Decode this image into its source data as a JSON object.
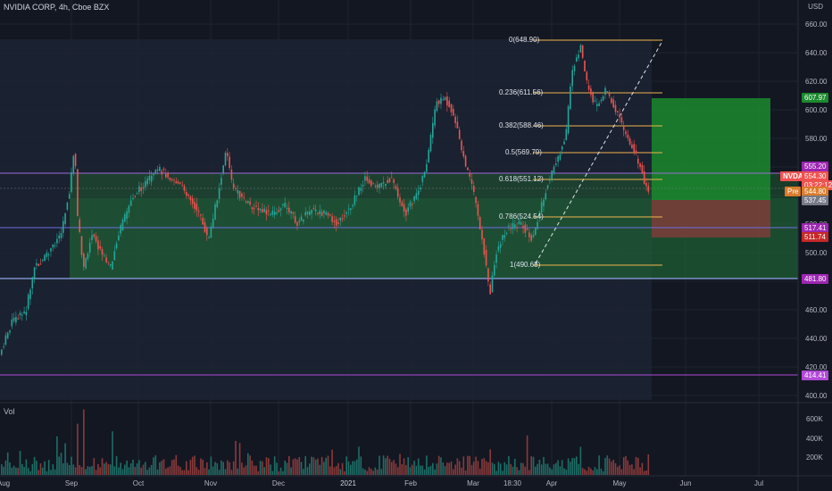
{
  "header": {
    "title": "NVIDIA CORP, 4h, Cboe BZX",
    "currency": "USD",
    "volume_label": "Vol"
  },
  "price_axis": [
    "660.00",
    "640.00",
    "620.00",
    "600.00",
    "580.00",
    "520.00",
    "500.00",
    "460.00",
    "440.00",
    "420.00",
    "400.00"
  ],
  "volume_axis": [
    "600K",
    "400K",
    "200K"
  ],
  "time_axis": [
    "Aug",
    "Sep",
    "Oct",
    "Nov",
    "Dec",
    "2021",
    "Feb",
    "Mar",
    "18:30",
    "Apr",
    "May",
    "Jun",
    "Jul"
  ],
  "fib_levels": [
    {
      "label": "0(648.90)"
    },
    {
      "label": "0.236(611.56)"
    },
    {
      "label": "0.382(588.46)"
    },
    {
      "label": "0.5(569.79)"
    },
    {
      "label": "0.618(551.12)"
    },
    {
      "label": "0.786(524.54)"
    },
    {
      "label": "1(490.68)"
    }
  ],
  "price_tags": {
    "target": "607.97",
    "resistance": "555.20",
    "symbol": "NVDA",
    "last_price": "554.30",
    "countdown": "03:22:12",
    "pre_label": "Pre",
    "pre_price": "544.80",
    "entry": "537.45",
    "support": "517.41",
    "stop": "511.74",
    "low_zone": "481.80",
    "bottom": "414.41"
  },
  "colors": {
    "background": "#131722",
    "up": "#26a69a",
    "down": "#ef5350",
    "fib": "#f0b44c",
    "purple": "#9c27b0",
    "blue": "#5b7fd1",
    "profit": "#1b8a2e",
    "loss": "#8a3b3b"
  }
}
